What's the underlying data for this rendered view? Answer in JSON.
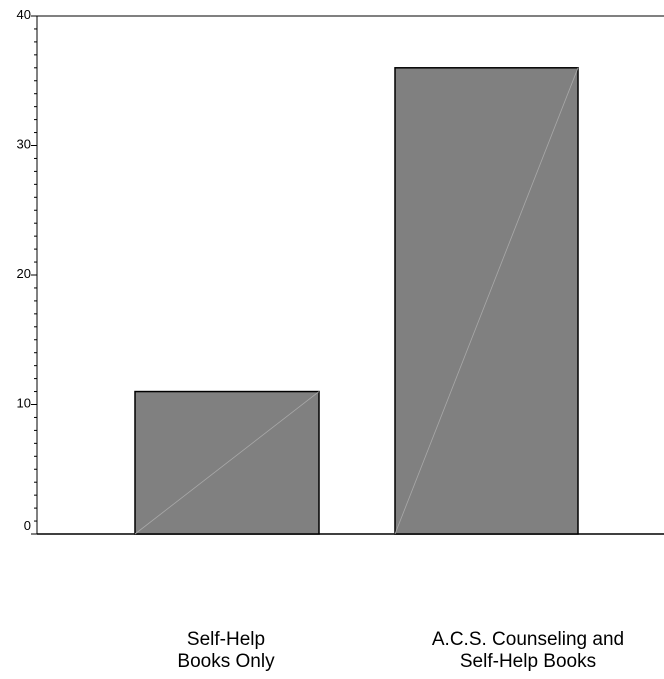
{
  "chart_data": {
    "type": "bar",
    "title": "",
    "xlabel": "",
    "ylabel": "",
    "ylim": [
      0,
      40
    ],
    "yticks": [
      0,
      10,
      20,
      30,
      40
    ],
    "grid": false,
    "bar_color": "#808080",
    "categories": [
      {
        "lines": [
          "Self-Help",
          "Books Only"
        ],
        "value": 11
      },
      {
        "lines": [
          "A.C.S. Counseling and",
          "Self-Help Books"
        ],
        "value": 36
      }
    ]
  }
}
